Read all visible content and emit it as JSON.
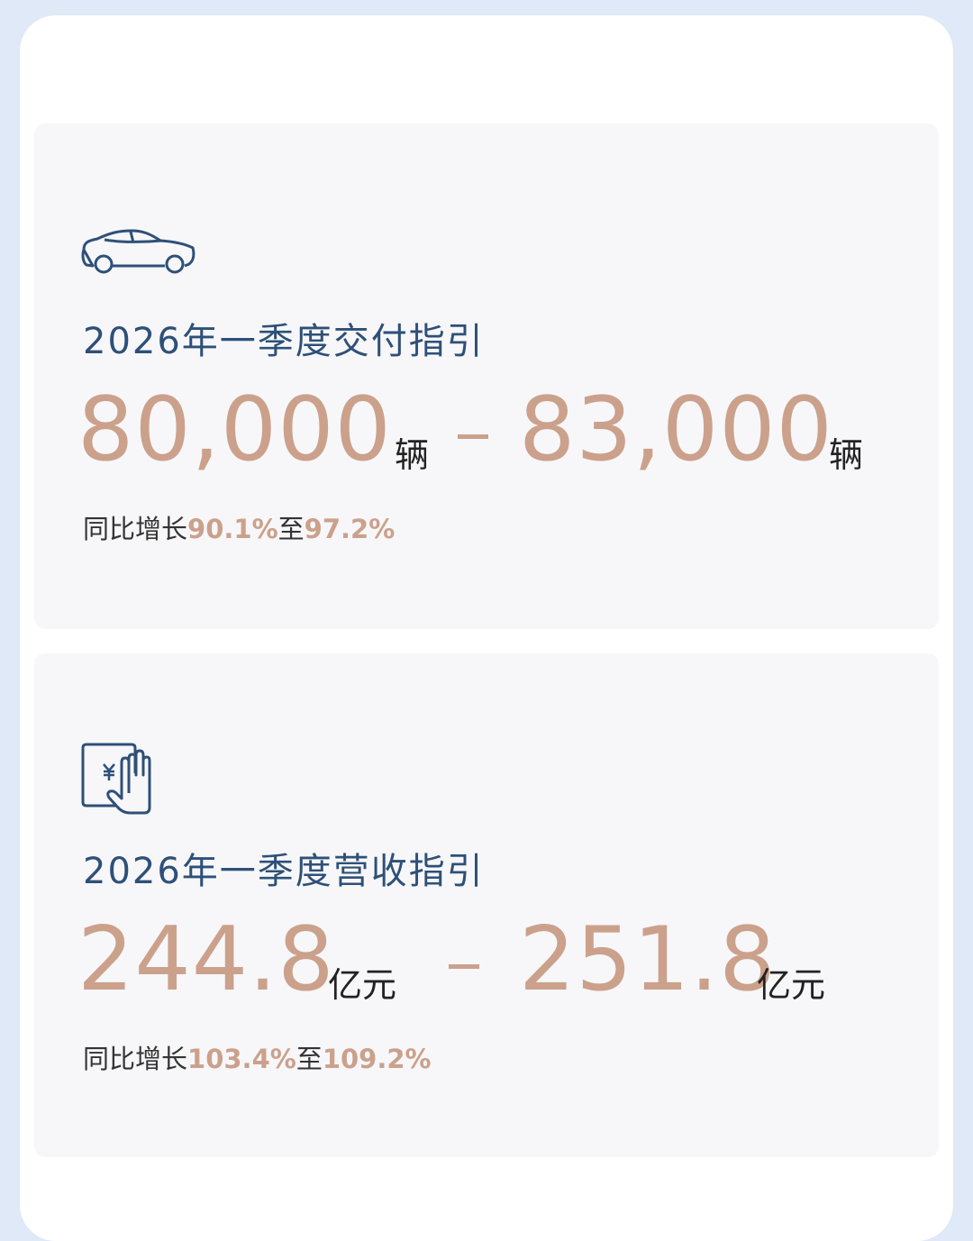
{
  "colors": {
    "accent": "#cba18c",
    "title": "#2e5078",
    "background": "#dfe9f7",
    "panel": "#f7f7f9"
  },
  "delivery": {
    "icon": "car-icon",
    "title": "2026年一季度交付指引",
    "low": "80,000",
    "high": "83,000",
    "unit": "辆",
    "growth_prefix": "同比增长",
    "growth_low": "90.1%",
    "growth_mid": "至",
    "growth_high": "97.2%"
  },
  "revenue": {
    "icon": "tablet-yuan-hand-icon",
    "title": "2026年一季度营收指引",
    "low": "244.8",
    "high": "251.8",
    "unit": "亿元",
    "growth_prefix": "同比增长",
    "growth_low": "103.4%",
    "growth_mid": "至",
    "growth_high": "109.2%"
  }
}
